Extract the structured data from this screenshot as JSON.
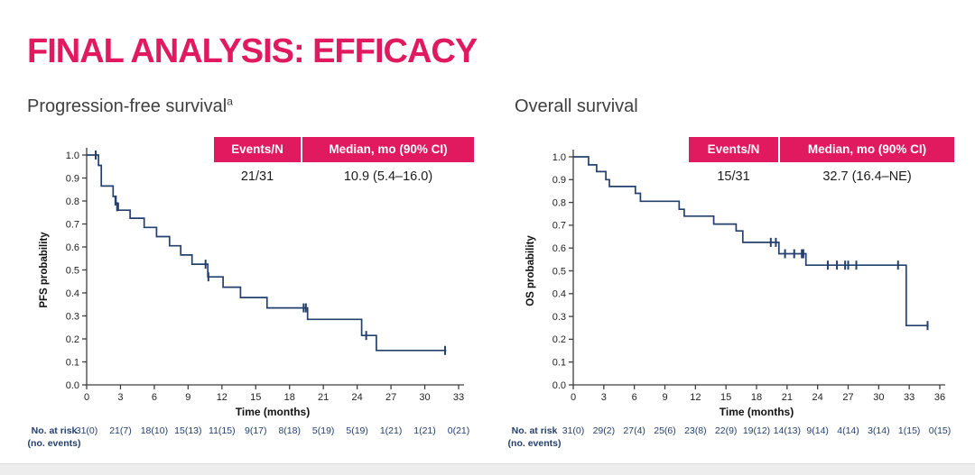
{
  "page": {
    "title": "FINAL ANALYSIS: EFFICACY"
  },
  "colors": {
    "accent": "#e1195e",
    "curve": "#24406e",
    "axis": "#3f3f3f",
    "tick_text": "#222222",
    "risk_text": "#24406e"
  },
  "summary_table_headers": {
    "events": "Events/N",
    "median": "Median, mo (90% CI)"
  },
  "chart_data": [
    {
      "id": "pfs",
      "type": "line",
      "variant": "kaplan-meier-step",
      "title": "Progression-free survival",
      "title_superscript": "a",
      "summary": {
        "events_n": "21/31",
        "median_mo_90ci": "10.9 (5.4–16.0)"
      },
      "xlabel": "Time (months)",
      "ylabel": "PFS probability",
      "xlim": [
        0,
        33
      ],
      "ylim": [
        0.0,
        1.0
      ],
      "xticks": [
        0,
        3,
        6,
        9,
        12,
        15,
        18,
        21,
        24,
        27,
        30,
        33
      ],
      "ytick_step": 0.1,
      "grid": false,
      "steps": [
        [
          0,
          1.0
        ],
        [
          1.05,
          0.955
        ],
        [
          1.3,
          0.865
        ],
        [
          2.35,
          0.82
        ],
        [
          2.6,
          0.79
        ],
        [
          2.8,
          0.76
        ],
        [
          3.85,
          0.725
        ],
        [
          5.1,
          0.685
        ],
        [
          6.2,
          0.645
        ],
        [
          7.35,
          0.605
        ],
        [
          8.35,
          0.565
        ],
        [
          9.35,
          0.525
        ],
        [
          10.75,
          0.47
        ],
        [
          12.1,
          0.425
        ],
        [
          13.65,
          0.38
        ],
        [
          16.0,
          0.335
        ],
        [
          19.6,
          0.285
        ],
        [
          24.4,
          0.215
        ],
        [
          25.7,
          0.15
        ]
      ],
      "curve_end": 31.9,
      "censor_marks": [
        [
          0.8,
          1.0
        ],
        [
          2.55,
          0.8
        ],
        [
          2.7,
          0.775
        ],
        [
          10.55,
          0.525
        ],
        [
          10.8,
          0.47
        ],
        [
          19.25,
          0.335
        ],
        [
          19.45,
          0.335
        ],
        [
          24.8,
          0.215
        ],
        [
          31.8,
          0.15
        ]
      ],
      "at_risk_label_line1": "No. at risk",
      "at_risk_label_line2": "(no. events)",
      "at_risk": [
        "31(0)",
        "21(7)",
        "18(10)",
        "15(13)",
        "11(15)",
        "9(17)",
        "8(18)",
        "5(19)",
        "5(19)",
        "1(21)",
        "1(21)",
        "0(21)"
      ]
    },
    {
      "id": "os",
      "type": "line",
      "variant": "kaplan-meier-step",
      "title": "Overall survival",
      "title_superscript": "",
      "summary": {
        "events_n": "15/31",
        "median_mo_90ci": "32.7 (16.4–NE)"
      },
      "xlabel": "Time (months)",
      "ylabel": "OS probability",
      "xlim": [
        0,
        36
      ],
      "ylim": [
        0.0,
        1.0
      ],
      "xticks": [
        0,
        3,
        6,
        9,
        12,
        15,
        18,
        21,
        24,
        27,
        30,
        33,
        36
      ],
      "ytick_step": 0.1,
      "grid": false,
      "steps": [
        [
          0,
          1.0
        ],
        [
          1.5,
          0.965
        ],
        [
          2.3,
          0.935
        ],
        [
          3.2,
          0.9
        ],
        [
          3.55,
          0.87
        ],
        [
          6.1,
          0.84
        ],
        [
          6.6,
          0.805
        ],
        [
          10.4,
          0.77
        ],
        [
          10.9,
          0.74
        ],
        [
          13.8,
          0.705
        ],
        [
          16.0,
          0.675
        ],
        [
          16.65,
          0.625
        ],
        [
          20.2,
          0.575
        ],
        [
          22.85,
          0.525
        ],
        [
          32.7,
          0.26
        ]
      ],
      "curve_end": 34.9,
      "censor_marks": [
        [
          19.4,
          0.625
        ],
        [
          19.9,
          0.625
        ],
        [
          20.8,
          0.575
        ],
        [
          21.7,
          0.575
        ],
        [
          22.45,
          0.575
        ],
        [
          22.6,
          0.575
        ],
        [
          25.0,
          0.525
        ],
        [
          25.9,
          0.525
        ],
        [
          26.7,
          0.525
        ],
        [
          27.0,
          0.525
        ],
        [
          27.8,
          0.525
        ],
        [
          31.9,
          0.525
        ],
        [
          34.8,
          0.26
        ]
      ],
      "at_risk_label_line1": "No. at risk",
      "at_risk_label_line2": "(no. events)",
      "at_risk": [
        "31(0)",
        "29(2)",
        "27(4)",
        "25(6)",
        "23(8)",
        "22(9)",
        "19(12)",
        "14(13)",
        "9(14)",
        "4(14)",
        "3(14)",
        "1(15)",
        "0(15)"
      ]
    }
  ]
}
